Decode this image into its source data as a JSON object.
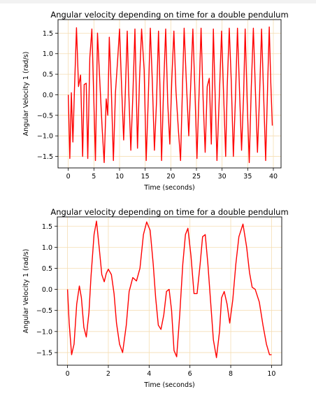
{
  "chart_data": [
    {
      "type": "line",
      "title": "Angular velocity depending on time for a double pendulum",
      "xlabel": "Time (seconds)",
      "ylabel": "Angular Velocity 1 (rad/s)",
      "xlim": [
        -2,
        41.5
      ],
      "ylim": [
        -1.78,
        1.83
      ],
      "xticks": [
        0,
        5,
        10,
        15,
        20,
        25,
        30,
        35,
        40
      ],
      "yticks": [
        -1.5,
        -1.0,
        -0.5,
        0.0,
        0.5,
        1.0,
        1.5
      ],
      "xtick_labels": [
        "0",
        "5",
        "10",
        "15",
        "20",
        "25",
        "30",
        "35",
        "40"
      ],
      "ytick_labels": [
        "−1.5",
        "−1.0",
        "−0.5",
        "0.0",
        "0.5",
        "1.0",
        "1.5"
      ],
      "grid": true,
      "line_color": "#ff0000",
      "grid_color": "#f5deb3",
      "series": [
        {
          "x": [
            0,
            0.3,
            0.6,
            0.9,
            1.2,
            1.6,
            2.0,
            2.4,
            2.8,
            3.1,
            3.5,
            3.8,
            4.2,
            4.6,
            5.0,
            5.3,
            5.7,
            6.2,
            6.6,
            7.0,
            7.4,
            7.7,
            8.0,
            8.4,
            8.8,
            9.2,
            9.6,
            10.0,
            10.4,
            10.8,
            11.1,
            11.5,
            11.8,
            12.2,
            12.6,
            13.0,
            13.5,
            13.9,
            14.3,
            14.8,
            15.2,
            15.6,
            16.0,
            16.4,
            16.8,
            17.2,
            17.6,
            17.9,
            18.2,
            18.6,
            19.0,
            19.4,
            19.8,
            20.2,
            20.6,
            21.0,
            21.5,
            21.9,
            22.3,
            22.6,
            23.0,
            23.5,
            23.9,
            24.3,
            24.7,
            25.1,
            25.5,
            25.9,
            26.3,
            26.7,
            27.1,
            27.5,
            27.9,
            28.3,
            28.6,
            29.0,
            29.5,
            29.9,
            30.3,
            30.7,
            31.0,
            31.4,
            31.8,
            32.2,
            32.6,
            33.0,
            33.4,
            33.8,
            34.2,
            34.5,
            34.9,
            35.3,
            35.7,
            36.1,
            36.5,
            36.9,
            37.3,
            37.7,
            38.1,
            38.5,
            38.9,
            39.2,
            39.5,
            39.8
          ],
          "y": [
            0.0,
            -1.55,
            0.05,
            -1.15,
            0.1,
            1.63,
            0.2,
            0.48,
            -1.5,
            0.25,
            0.28,
            -1.55,
            0.9,
            1.6,
            -0.2,
            -1.6,
            1.5,
            0.2,
            -0.8,
            -1.65,
            -0.1,
            -0.5,
            1.4,
            0.1,
            -1.6,
            0.05,
            0.8,
            1.6,
            0.2,
            -1.1,
            -0.05,
            1.55,
            0.05,
            -1.35,
            0.0,
            1.6,
            -1.3,
            0.4,
            1.6,
            0.6,
            -1.6,
            -0.1,
            1.62,
            0.3,
            -1.35,
            -0.2,
            1.55,
            0.1,
            -1.6,
            0.2,
            1.6,
            -0.2,
            -1.2,
            0.4,
            1.55,
            0.1,
            -0.9,
            -1.6,
            0.3,
            1.62,
            0.4,
            -1.0,
            0.3,
            1.6,
            0.1,
            -1.55,
            0.0,
            1.62,
            -0.1,
            -1.4,
            0.2,
            0.4,
            -1.2,
            1.6,
            0.2,
            -1.6,
            0.1,
            1.55,
            0.0,
            -1.5,
            0.2,
            1.62,
            0.3,
            -1.5,
            -0.1,
            1.62,
            0.1,
            -1.35,
            0.0,
            1.6,
            -0.2,
            -1.65,
            0.2,
            1.62,
            0.1,
            -1.4,
            -0.05,
            1.6,
            0.0,
            -1.6,
            0.3,
            1.65,
            0.3,
            -0.75
          ]
        }
      ]
    },
    {
      "type": "line",
      "title": "Angular velocity depending on time for a double pendulum",
      "xlabel": "Time (seconds)",
      "ylabel": "Angular Velocity 1 (rad/s)",
      "xlim": [
        -0.5,
        10.5
      ],
      "ylim": [
        -1.8,
        1.72
      ],
      "xticks": [
        0,
        2,
        4,
        6,
        8,
        10
      ],
      "yticks": [
        -1.5,
        -1.0,
        -0.5,
        0.0,
        0.5,
        1.0,
        1.5
      ],
      "xtick_labels": [
        "0",
        "2",
        "4",
        "6",
        "8",
        "10"
      ],
      "ytick_labels": [
        "−1.5",
        "−1.0",
        "−0.5",
        "0.0",
        "0.5",
        "1.0",
        "1.5"
      ],
      "grid": true,
      "line_color": "#ff0000",
      "grid_color": "#f5deb3",
      "series": [
        {
          "x": [
            0,
            0.08,
            0.2,
            0.32,
            0.45,
            0.58,
            0.68,
            0.8,
            0.92,
            1.05,
            1.15,
            1.3,
            1.42,
            1.55,
            1.68,
            1.8,
            1.9,
            2.0,
            2.15,
            2.28,
            2.4,
            2.55,
            2.7,
            2.88,
            3.02,
            3.2,
            3.38,
            3.55,
            3.72,
            3.88,
            4.05,
            4.2,
            4.32,
            4.45,
            4.58,
            4.72,
            4.85,
            4.98,
            5.1,
            5.22,
            5.35,
            5.5,
            5.65,
            5.78,
            5.9,
            6.05,
            6.2,
            6.35,
            6.5,
            6.62,
            6.75,
            6.88,
            7.0,
            7.15,
            7.3,
            7.45,
            7.55,
            7.68,
            7.82,
            7.95,
            8.1,
            8.25,
            8.4,
            8.6,
            8.78,
            8.92,
            9.05,
            9.2,
            9.4,
            9.58,
            9.75,
            9.9,
            10.0
          ],
          "y": [
            0.0,
            -0.8,
            -1.55,
            -1.3,
            -0.35,
            0.08,
            -0.2,
            -0.9,
            -1.13,
            -0.55,
            0.3,
            1.3,
            1.62,
            1.0,
            0.35,
            0.18,
            0.38,
            0.48,
            0.35,
            -0.1,
            -0.8,
            -1.3,
            -1.5,
            -0.85,
            -0.05,
            0.28,
            0.2,
            0.5,
            1.3,
            1.6,
            1.4,
            0.6,
            -0.2,
            -0.85,
            -0.95,
            -0.6,
            -0.05,
            0.0,
            -0.5,
            -1.45,
            -1.6,
            -0.6,
            0.6,
            1.3,
            1.45,
            0.8,
            -0.1,
            -0.1,
            0.6,
            1.25,
            1.3,
            0.6,
            -0.2,
            -1.2,
            -1.62,
            -1.0,
            -0.2,
            -0.05,
            -0.35,
            -0.8,
            -0.25,
            0.6,
            1.25,
            1.55,
            1.0,
            0.4,
            0.05,
            0.0,
            -0.3,
            -0.85,
            -1.3,
            -1.55,
            -1.55
          ]
        }
      ]
    }
  ]
}
